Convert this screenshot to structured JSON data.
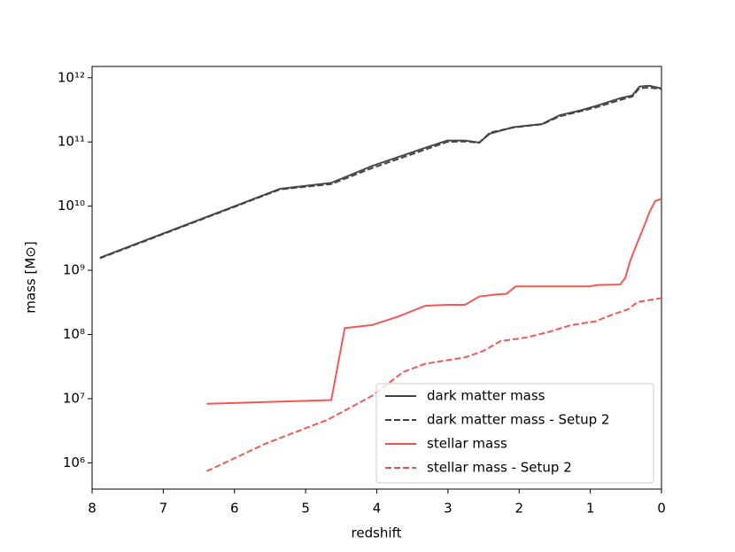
{
  "chart_data": {
    "type": "line",
    "x_label": "redshift",
    "y_label": "mass [M⊙]",
    "y_log": true,
    "xlim": [
      8,
      0
    ],
    "ylim": [
      390000,
      1500000000000
    ],
    "xticks": [
      8,
      7,
      6,
      5,
      4,
      3,
      2,
      1,
      0
    ],
    "yticks": [
      {
        "value": 1000000,
        "label": "10⁶"
      },
      {
        "value": 10000000,
        "label": "10⁷"
      },
      {
        "value": 100000000,
        "label": "10⁸"
      },
      {
        "value": 1000000000,
        "label": "10⁹"
      },
      {
        "value": 10000000000,
        "label": "10¹⁰"
      },
      {
        "value": 100000000000,
        "label": "10¹¹"
      },
      {
        "value": 1000000000000,
        "label": "10¹²"
      }
    ],
    "legend_position": "lower right",
    "series": [
      {
        "name": "dark matter mass",
        "color": "#404040",
        "linestyle": "solid",
        "x": [
          7.89,
          5.36,
          4.64,
          4.07,
          3.32,
          3.01,
          2.76,
          2.56,
          2.41,
          2.08,
          1.68,
          1.43,
          1.14,
          0.9,
          0.58,
          0.41,
          0.31,
          0.17,
          0
        ],
        "values": [
          1570000000,
          18600000000,
          23000000000,
          42000000000,
          81000000000,
          105000000000,
          105000000000,
          98000000000,
          135000000000,
          170000000000,
          190000000000,
          260000000000,
          310000000000,
          370000000000,
          480000000000,
          530000000000,
          730000000000,
          750000000000,
          680000000000
        ]
      },
      {
        "name": "dark matter mass - Setup 2",
        "color": "#404040",
        "linestyle": "dashed",
        "x": [
          7.89,
          5.36,
          4.64,
          4.07,
          3.32,
          3.01,
          2.76,
          2.56,
          2.41,
          2.08,
          1.68,
          1.43,
          1.14,
          0.9,
          0.58,
          0.41,
          0.31,
          0.17,
          0
        ],
        "values": [
          1540000000,
          18200000000,
          22000000000,
          39000000000,
          76000000000,
          100000000000,
          102000000000,
          97000000000,
          140000000000,
          168000000000,
          188000000000,
          250000000000,
          300000000000,
          350000000000,
          450000000000,
          510000000000,
          690000000000,
          700000000000,
          670000000000
        ]
      },
      {
        "name": "stellar mass",
        "color": "#f0504d",
        "linestyle": "solid",
        "x": [
          6.39,
          4.64,
          4.45,
          4.07,
          3.7,
          3.32,
          3.01,
          2.76,
          2.56,
          2.33,
          2.18,
          2.05,
          1.02,
          0.9,
          0.58,
          0.51,
          0.44,
          0.34,
          0.25,
          0.17,
          0.09,
          0
        ],
        "values": [
          8300000,
          9500000,
          126000000,
          140000000,
          190000000,
          280000000,
          290000000,
          290000000,
          390000000,
          420000000,
          430000000,
          560000000,
          560000000,
          590000000,
          600000000,
          760000000,
          1400000000,
          2700000000,
          4700000000,
          8000000000,
          12000000000,
          13000000000
        ]
      },
      {
        "name": "stellar mass - Setup 2",
        "color": "#f0504d",
        "linestyle": "dashed",
        "x": [
          6.39,
          5.56,
          4.69,
          4.07,
          3.63,
          3.32,
          2.76,
          2.51,
          2.26,
          1.89,
          1.58,
          1.27,
          0.93,
          0.71,
          0.46,
          0.34,
          0
        ],
        "values": [
          740000,
          2000000,
          4700000,
          11000000,
          26000000,
          35000000,
          44000000,
          55000000,
          79000000,
          90000000,
          110000000,
          140000000,
          160000000,
          200000000,
          250000000,
          320000000,
          370000000
        ]
      }
    ]
  }
}
